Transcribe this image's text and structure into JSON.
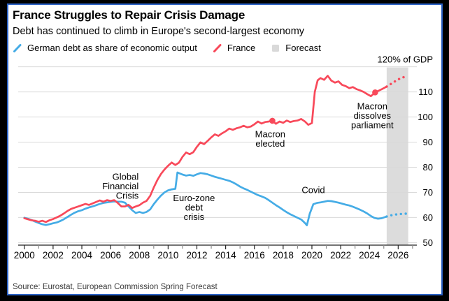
{
  "header": {
    "title": "France Struggles to Repair Crisis Damage",
    "subtitle": "Debt has continued to climb in Europe's second-largest economy"
  },
  "legend": {
    "items": [
      {
        "label": "German debt as share of economic output",
        "swatch": "line-slash",
        "color": "#45ace6"
      },
      {
        "label": "France",
        "swatch": "line-slash",
        "color": "#f8495a"
      },
      {
        "label": "Forecast",
        "swatch": "square",
        "color": "#d9d9d9"
      }
    ]
  },
  "source": "Source: Eurostat, European Commission Spring Forecast",
  "colors": {
    "france": "#f8495a",
    "germany": "#45ace6",
    "forecast_band": "#dcdcdc",
    "gridline": "#d9d9d9",
    "axis": "#222222",
    "minor_tick": "#8a8a8a",
    "text": "#000000",
    "panel_border": "#2b62c6",
    "outer_frame": "#000000"
  },
  "chart_data": {
    "type": "line",
    "unit_label": "120% of GDP",
    "ylabel": "% of GDP",
    "ylim": [
      49,
      121
    ],
    "y_gridlines": [
      50,
      60,
      70,
      80,
      90,
      100,
      110,
      120
    ],
    "y_axis_labels": [
      "50",
      "60",
      "70",
      "80",
      "90",
      "100",
      "110"
    ],
    "x_range_years": [
      1999.67,
      2027.2
    ],
    "x_tick_years": [
      2000,
      2002,
      2004,
      2006,
      2008,
      2010,
      2012,
      2014,
      2016,
      2018,
      2020,
      2022,
      2024,
      2026
    ],
    "x_minor_tick_step": 1,
    "grid": true,
    "legend_position": "top",
    "forecast_start": 2025.2,
    "forecast_band_years": [
      2025.2,
      2026.7
    ],
    "series": [
      {
        "name": "German debt as share of economic output",
        "color": "#45ace6",
        "points": [
          [
            2000.0,
            59.9
          ],
          [
            2000.25,
            59.5
          ],
          [
            2000.5,
            59.0
          ],
          [
            2000.75,
            58.4
          ],
          [
            2001.0,
            57.8
          ],
          [
            2001.25,
            57.3
          ],
          [
            2001.5,
            57.0
          ],
          [
            2001.75,
            57.3
          ],
          [
            2002.0,
            57.7
          ],
          [
            2002.25,
            58.0
          ],
          [
            2002.5,
            58.6
          ],
          [
            2002.75,
            59.3
          ],
          [
            2003.0,
            60.2
          ],
          [
            2003.25,
            61.1
          ],
          [
            2003.5,
            61.9
          ],
          [
            2003.75,
            62.5
          ],
          [
            2004.0,
            62.9
          ],
          [
            2004.25,
            63.5
          ],
          [
            2004.5,
            64.0
          ],
          [
            2004.75,
            64.4
          ],
          [
            2005.0,
            64.9
          ],
          [
            2005.25,
            65.4
          ],
          [
            2005.5,
            65.8
          ],
          [
            2005.75,
            66.0
          ],
          [
            2006.0,
            66.2
          ],
          [
            2006.25,
            66.4
          ],
          [
            2006.5,
            66.3
          ],
          [
            2006.75,
            66.3
          ],
          [
            2007.0,
            65.9
          ],
          [
            2007.25,
            64.4
          ],
          [
            2007.5,
            62.9
          ],
          [
            2007.75,
            61.8
          ],
          [
            2008.0,
            62.2
          ],
          [
            2008.25,
            61.8
          ],
          [
            2008.5,
            62.2
          ],
          [
            2008.75,
            63.2
          ],
          [
            2009.0,
            65.3
          ],
          [
            2009.25,
            67.1
          ],
          [
            2009.5,
            68.7
          ],
          [
            2009.75,
            70.0
          ],
          [
            2010.0,
            70.8
          ],
          [
            2010.25,
            71.2
          ],
          [
            2010.5,
            71.4
          ],
          [
            2010.65,
            77.9
          ],
          [
            2011.0,
            77.1
          ],
          [
            2011.25,
            76.7
          ],
          [
            2011.5,
            76.9
          ],
          [
            2011.75,
            76.6
          ],
          [
            2012.0,
            77.2
          ],
          [
            2012.25,
            77.7
          ],
          [
            2012.5,
            77.5
          ],
          [
            2012.75,
            77.2
          ],
          [
            2013.0,
            76.7
          ],
          [
            2013.25,
            76.2
          ],
          [
            2013.5,
            75.8
          ],
          [
            2013.75,
            75.4
          ],
          [
            2014.0,
            75.0
          ],
          [
            2014.25,
            74.6
          ],
          [
            2014.5,
            74.0
          ],
          [
            2014.75,
            73.2
          ],
          [
            2015.0,
            72.3
          ],
          [
            2015.25,
            71.6
          ],
          [
            2015.5,
            71.0
          ],
          [
            2015.75,
            70.3
          ],
          [
            2016.0,
            69.6
          ],
          [
            2016.25,
            68.9
          ],
          [
            2016.5,
            68.4
          ],
          [
            2016.75,
            67.8
          ],
          [
            2017.0,
            66.9
          ],
          [
            2017.25,
            65.9
          ],
          [
            2017.5,
            64.9
          ],
          [
            2017.75,
            64.0
          ],
          [
            2018.0,
            63.0
          ],
          [
            2018.25,
            62.1
          ],
          [
            2018.5,
            61.3
          ],
          [
            2018.75,
            60.6
          ],
          [
            2019.0,
            59.9
          ],
          [
            2019.25,
            59.2
          ],
          [
            2019.5,
            57.9
          ],
          [
            2019.65,
            56.9
          ],
          [
            2019.85,
            61.5
          ],
          [
            2020.1,
            65.3
          ],
          [
            2020.35,
            65.8
          ],
          [
            2020.6,
            66.0
          ],
          [
            2020.85,
            66.3
          ],
          [
            2021.1,
            66.6
          ],
          [
            2021.35,
            66.5
          ],
          [
            2021.6,
            66.2
          ],
          [
            2021.85,
            65.9
          ],
          [
            2022.1,
            65.5
          ],
          [
            2022.35,
            65.1
          ],
          [
            2022.6,
            64.8
          ],
          [
            2022.85,
            64.3
          ],
          [
            2023.1,
            63.7
          ],
          [
            2023.35,
            63.1
          ],
          [
            2023.6,
            62.4
          ],
          [
            2023.85,
            61.6
          ],
          [
            2024.1,
            60.6
          ],
          [
            2024.35,
            59.8
          ],
          [
            2024.6,
            59.5
          ],
          [
            2024.85,
            59.7
          ],
          [
            2025.2,
            60.4
          ],
          [
            2025.45,
            60.8
          ],
          [
            2025.7,
            61.1
          ],
          [
            2025.95,
            61.3
          ],
          [
            2026.2,
            61.4
          ],
          [
            2026.45,
            61.5
          ],
          [
            2026.65,
            61.5
          ]
        ]
      },
      {
        "name": "France",
        "color": "#f8495a",
        "points": [
          [
            2000.0,
            59.7
          ],
          [
            2000.25,
            59.3
          ],
          [
            2000.5,
            58.9
          ],
          [
            2000.75,
            58.7
          ],
          [
            2001.0,
            58.3
          ],
          [
            2001.25,
            58.7
          ],
          [
            2001.5,
            58.2
          ],
          [
            2001.75,
            58.9
          ],
          [
            2002.0,
            59.4
          ],
          [
            2002.25,
            60.0
          ],
          [
            2002.5,
            60.7
          ],
          [
            2002.75,
            61.6
          ],
          [
            2003.0,
            62.6
          ],
          [
            2003.25,
            63.4
          ],
          [
            2003.5,
            63.9
          ],
          [
            2003.75,
            64.4
          ],
          [
            2004.0,
            64.9
          ],
          [
            2004.25,
            65.4
          ],
          [
            2004.5,
            65.0
          ],
          [
            2004.75,
            65.6
          ],
          [
            2005.0,
            66.2
          ],
          [
            2005.25,
            66.8
          ],
          [
            2005.5,
            66.3
          ],
          [
            2005.75,
            66.9
          ],
          [
            2006.0,
            66.6
          ],
          [
            2006.25,
            66.9
          ],
          [
            2006.5,
            65.8
          ],
          [
            2006.75,
            64.4
          ],
          [
            2007.0,
            64.4
          ],
          [
            2007.25,
            65.0
          ],
          [
            2007.5,
            63.8
          ],
          [
            2007.75,
            64.4
          ],
          [
            2008.0,
            64.9
          ],
          [
            2008.25,
            65.9
          ],
          [
            2008.5,
            66.6
          ],
          [
            2008.75,
            68.6
          ],
          [
            2009.0,
            71.9
          ],
          [
            2009.25,
            74.9
          ],
          [
            2009.5,
            77.3
          ],
          [
            2009.75,
            79.1
          ],
          [
            2010.0,
            80.6
          ],
          [
            2010.25,
            81.9
          ],
          [
            2010.5,
            80.9
          ],
          [
            2010.75,
            81.8
          ],
          [
            2011.0,
            84.1
          ],
          [
            2011.25,
            85.9
          ],
          [
            2011.5,
            85.2
          ],
          [
            2011.75,
            86.0
          ],
          [
            2012.0,
            88.1
          ],
          [
            2012.25,
            89.9
          ],
          [
            2012.5,
            89.2
          ],
          [
            2012.75,
            90.5
          ],
          [
            2013.0,
            91.9
          ],
          [
            2013.25,
            93.1
          ],
          [
            2013.5,
            92.5
          ],
          [
            2013.75,
            93.5
          ],
          [
            2014.0,
            94.3
          ],
          [
            2014.25,
            95.4
          ],
          [
            2014.5,
            94.9
          ],
          [
            2014.75,
            95.5
          ],
          [
            2015.0,
            95.9
          ],
          [
            2015.25,
            96.5
          ],
          [
            2015.5,
            95.9
          ],
          [
            2015.75,
            96.2
          ],
          [
            2016.0,
            97.1
          ],
          [
            2016.25,
            98.2
          ],
          [
            2016.5,
            97.4
          ],
          [
            2016.75,
            98.0
          ],
          [
            2017.0,
            98.2
          ],
          [
            2017.25,
            98.5
          ],
          [
            2017.5,
            97.3
          ],
          [
            2017.75,
            98.2
          ],
          [
            2018.0,
            97.7
          ],
          [
            2018.25,
            98.6
          ],
          [
            2018.5,
            98.0
          ],
          [
            2018.75,
            98.4
          ],
          [
            2019.0,
            98.6
          ],
          [
            2019.25,
            99.2
          ],
          [
            2019.5,
            98.3
          ],
          [
            2019.75,
            96.9
          ],
          [
            2020.0,
            97.6
          ],
          [
            2020.2,
            110.0
          ],
          [
            2020.4,
            114.6
          ],
          [
            2020.6,
            115.5
          ],
          [
            2020.85,
            114.8
          ],
          [
            2021.1,
            116.4
          ],
          [
            2021.35,
            114.5
          ],
          [
            2021.6,
            113.7
          ],
          [
            2021.85,
            114.2
          ],
          [
            2022.1,
            112.8
          ],
          [
            2022.35,
            112.3
          ],
          [
            2022.6,
            111.5
          ],
          [
            2022.85,
            111.9
          ],
          [
            2023.1,
            111.1
          ],
          [
            2023.35,
            110.6
          ],
          [
            2023.6,
            110.0
          ],
          [
            2023.85,
            109.1
          ],
          [
            2024.1,
            108.3
          ],
          [
            2024.4,
            109.8
          ],
          [
            2024.65,
            110.5
          ],
          [
            2024.9,
            111.2
          ],
          [
            2025.2,
            112.1
          ],
          [
            2025.45,
            113.0
          ],
          [
            2025.7,
            113.9
          ],
          [
            2025.95,
            114.8
          ],
          [
            2026.2,
            115.5
          ],
          [
            2026.45,
            116.0
          ],
          [
            2026.65,
            116.4
          ]
        ]
      }
    ],
    "markers": [
      {
        "series": "France",
        "x": 2017.25,
        "y": 98.5,
        "label": "Macron elected"
      },
      {
        "series": "France",
        "x": 2024.4,
        "y": 109.8,
        "label": "Macron dissolves parliament"
      }
    ],
    "annotations": [
      {
        "rows": [
          "Global",
          "Financial",
          "Crisis"
        ],
        "x_year": 2007.95,
        "y_value": 72.5,
        "anchor": "end"
      },
      {
        "rows": [
          "Euro-zone",
          "debt",
          "crisis"
        ],
        "x_year": 2011.8,
        "y_value": 64.0,
        "anchor": "middle"
      },
      {
        "rows": [
          "Macron",
          "elected"
        ],
        "x_year": 2017.1,
        "y_value": 91.3,
        "anchor": "middle"
      },
      {
        "rows": [
          "Covid"
        ],
        "x_year": 2020.1,
        "y_value": 71.0,
        "anchor": "middle"
      },
      {
        "rows": [
          "Macron",
          "dissolves",
          "parliament"
        ],
        "x_year": 2024.2,
        "y_value": 100.5,
        "anchor": "middle"
      }
    ]
  }
}
